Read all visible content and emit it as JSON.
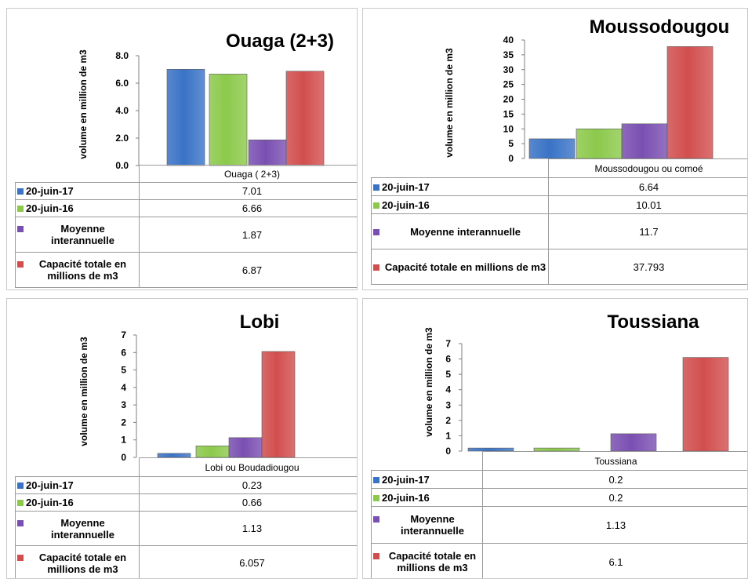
{
  "colors": {
    "s0": "#3A73C6",
    "s1": "#8CC94B",
    "s2": "#7A4FB2",
    "s3": "#D24E4E"
  },
  "chart_data": [
    {
      "type": "bar",
      "title": "Ouaga (2+3)",
      "ylabel": "volume en million de m3",
      "category": "Ouaga ( 2+3)",
      "ylim": [
        0,
        8
      ],
      "yticks": [
        "0.0",
        "2.0",
        "4.0",
        "6.0",
        "8.0"
      ],
      "series": [
        {
          "name": "20-juin-17",
          "value": 7.01,
          "label": "7.01"
        },
        {
          "name": "20-juin-16",
          "value": 6.66,
          "label": "6.66"
        },
        {
          "name": "Moyenne interannuelle",
          "value": 1.87,
          "label": "1.87"
        },
        {
          "name": "Capacité totale en millions de m3",
          "value": 6.87,
          "label": "6.87"
        }
      ]
    },
    {
      "type": "bar",
      "title": "Moussodougou",
      "ylabel": "volume en million de m3",
      "category": "Moussodougou ou comoé",
      "ylim": [
        0,
        40
      ],
      "yticks": [
        "0",
        "5",
        "10",
        "15",
        "20",
        "25",
        "30",
        "35",
        "40"
      ],
      "series": [
        {
          "name": "20-juin-17",
          "value": 6.64,
          "label": "6.64"
        },
        {
          "name": "20-juin-16",
          "value": 10.01,
          "label": "10.01"
        },
        {
          "name": "Moyenne interannuelle",
          "value": 11.7,
          "label": "11.7"
        },
        {
          "name": "Capacité totale en millions de m3",
          "value": 37.793,
          "label": "37.793"
        }
      ]
    },
    {
      "type": "bar",
      "title": "Lobi",
      "ylabel": "volume en million de m3",
      "category": "Lobi ou Boudadiougou",
      "ylim": [
        0,
        7
      ],
      "yticks": [
        "0",
        "1",
        "2",
        "3",
        "4",
        "5",
        "6",
        "7"
      ],
      "series": [
        {
          "name": "20-juin-17",
          "value": 0.23,
          "label": "0.23"
        },
        {
          "name": "20-juin-16",
          "value": 0.66,
          "label": "0.66"
        },
        {
          "name": "Moyenne interannuelle",
          "value": 1.13,
          "label": "1.13"
        },
        {
          "name": "Capacité totale en millions de m3",
          "value": 6.057,
          "label": "6.057"
        }
      ]
    },
    {
      "type": "bar",
      "title": "Toussiana",
      "ylabel": "volume en million de m3",
      "category": "Toussiana",
      "ylim": [
        0,
        7
      ],
      "yticks": [
        "0",
        "1",
        "2",
        "3",
        "4",
        "5",
        "6",
        "7"
      ],
      "series": [
        {
          "name": "20-juin-17",
          "value": 0.2,
          "label": "0.2"
        },
        {
          "name": "20-juin-16",
          "value": 0.2,
          "label": "0.2"
        },
        {
          "name": "Moyenne interannuelle",
          "value": 1.13,
          "label": "1.13"
        },
        {
          "name": "Capacité totale en millions de m3",
          "value": 6.1,
          "label": "6.1"
        }
      ]
    }
  ]
}
